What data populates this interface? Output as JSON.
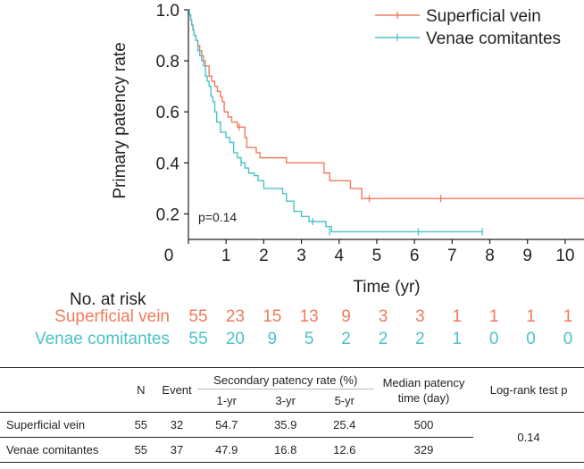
{
  "chart_data": {
    "type": "line",
    "title": "",
    "xlabel": "Time (yr)",
    "ylabel": "Primary patency rate",
    "xlim": [
      0,
      10.5
    ],
    "ylim": [
      0.1,
      1.0
    ],
    "x_ticks": [
      "0",
      "1",
      "2",
      "3",
      "4",
      "5",
      "6",
      "7",
      "8",
      "9",
      "10"
    ],
    "y_ticks": [
      "0.2",
      "0.4",
      "0.6",
      "0.8",
      "1.0"
    ],
    "annotation": "p=0.14",
    "legend": "top-right",
    "series": [
      {
        "name": "Superficial vein",
        "color": "#ee7b5b",
        "steps": [
          [
            0,
            1.0
          ],
          [
            0.03,
            0.98
          ],
          [
            0.06,
            0.96
          ],
          [
            0.09,
            0.94
          ],
          [
            0.12,
            0.92
          ],
          [
            0.15,
            0.9
          ],
          [
            0.2,
            0.88
          ],
          [
            0.25,
            0.86
          ],
          [
            0.3,
            0.84
          ],
          [
            0.35,
            0.82
          ],
          [
            0.4,
            0.8
          ],
          [
            0.45,
            0.78
          ],
          [
            0.55,
            0.74
          ],
          [
            0.62,
            0.72
          ],
          [
            0.7,
            0.7
          ],
          [
            0.77,
            0.68
          ],
          [
            0.85,
            0.66
          ],
          [
            0.9,
            0.64
          ],
          [
            0.95,
            0.6
          ],
          [
            1.05,
            0.58
          ],
          [
            1.15,
            0.56
          ],
          [
            1.3,
            0.54
          ],
          [
            1.5,
            0.5
          ],
          [
            1.55,
            0.46
          ],
          [
            1.8,
            0.44
          ],
          [
            1.9,
            0.42
          ],
          [
            2.5,
            0.42
          ],
          [
            2.6,
            0.4
          ],
          [
            3.6,
            0.36
          ],
          [
            3.75,
            0.33
          ],
          [
            4.3,
            0.3
          ],
          [
            4.6,
            0.26
          ],
          [
            10.5,
            0.26
          ]
        ],
        "censored": [
          [
            1.35,
            0.54
          ],
          [
            4.8,
            0.26
          ],
          [
            6.7,
            0.26
          ]
        ]
      },
      {
        "name": "Venae comitantes",
        "color": "#4cc2c8",
        "steps": [
          [
            0,
            1.0
          ],
          [
            0.03,
            0.98
          ],
          [
            0.06,
            0.96
          ],
          [
            0.09,
            0.94
          ],
          [
            0.12,
            0.92
          ],
          [
            0.15,
            0.9
          ],
          [
            0.2,
            0.88
          ],
          [
            0.25,
            0.84
          ],
          [
            0.3,
            0.82
          ],
          [
            0.35,
            0.8
          ],
          [
            0.4,
            0.78
          ],
          [
            0.45,
            0.74
          ],
          [
            0.5,
            0.72
          ],
          [
            0.55,
            0.7
          ],
          [
            0.6,
            0.66
          ],
          [
            0.65,
            0.64
          ],
          [
            0.7,
            0.6
          ],
          [
            0.75,
            0.56
          ],
          [
            0.85,
            0.52
          ],
          [
            1.0,
            0.5
          ],
          [
            1.1,
            0.48
          ],
          [
            1.2,
            0.44
          ],
          [
            1.3,
            0.42
          ],
          [
            1.4,
            0.4
          ],
          [
            1.5,
            0.38
          ],
          [
            1.6,
            0.36
          ],
          [
            1.75,
            0.35
          ],
          [
            1.85,
            0.33
          ],
          [
            2.0,
            0.3
          ],
          [
            2.5,
            0.28
          ],
          [
            2.6,
            0.25
          ],
          [
            2.8,
            0.21
          ],
          [
            3.0,
            0.19
          ],
          [
            3.2,
            0.17
          ],
          [
            3.65,
            0.15
          ],
          [
            3.8,
            0.13
          ],
          [
            7.8,
            0.13
          ]
        ],
        "censored": [
          [
            1.4,
            0.4
          ],
          [
            3.3,
            0.17
          ],
          [
            3.75,
            0.13
          ],
          [
            6.1,
            0.13
          ],
          [
            7.8,
            0.13
          ]
        ]
      }
    ]
  },
  "risk_table": {
    "title": "No. at risk",
    "rows": [
      {
        "label": "Superficial vein",
        "color": "#ee7b5b",
        "values": [
          "55",
          "23",
          "15",
          "13",
          "9",
          "3",
          "3",
          "1",
          "1",
          "1",
          "1"
        ]
      },
      {
        "label": "Venae comitantes",
        "color": "#4cc2c8",
        "values": [
          "55",
          "20",
          "9",
          "5",
          "2",
          "2",
          "2",
          "1",
          "0",
          "0",
          "0"
        ]
      }
    ]
  },
  "summary_table": {
    "headers": {
      "n": "N",
      "event": "Event",
      "secondary": "Secondary patency rate (%)",
      "yr1": "1-yr",
      "yr3": "3-yr",
      "yr5": "5-yr",
      "median": "Median patency time (day)",
      "logrank": "Log-rank test p"
    },
    "rows": [
      {
        "group": "Superficial vein",
        "n": "55",
        "event": "32",
        "yr1": "54.7",
        "yr3": "35.9",
        "yr5": "25.4",
        "median": "500"
      },
      {
        "group": "Venae comitantes",
        "n": "55",
        "event": "37",
        "yr1": "47.9",
        "yr3": "16.8",
        "yr5": "12.6",
        "median": "329"
      }
    ],
    "logrank_p": "0.14"
  }
}
